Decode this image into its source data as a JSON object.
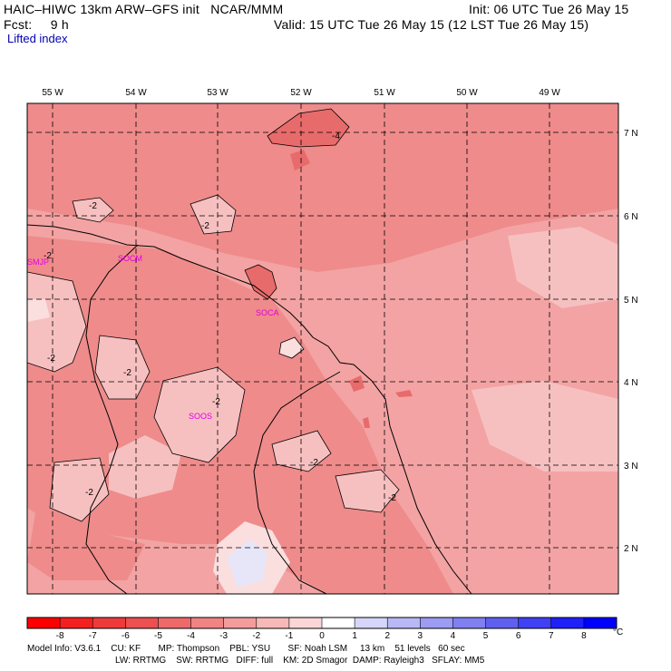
{
  "header": {
    "model_line": "HAIC–HIWC 13km ARW–GFS init   NCAR/MMM",
    "fcst_line": "Fcst:     9 h",
    "init_line": "Init: 06 UTC Tue 26 May 15",
    "valid_line": "Valid: 15 UTC Tue 26 May 15 (12 LST Tue 26 May 15)",
    "field": "Lifted index"
  },
  "map": {
    "lon_labels": [
      "55 W",
      "54 W",
      "53 W",
      "52 W",
      "51 W",
      "50 W",
      "49 W"
    ],
    "lat_labels": [
      "7 N",
      "6 N",
      "5 N",
      "4 N",
      "3 N",
      "2 N"
    ],
    "stations": [
      "SMJP",
      "SOCM",
      "SOCA",
      "SOOS"
    ],
    "contour_labels": [
      "-2",
      "-2",
      "-2",
      "-2",
      "-2",
      "-2",
      "-2",
      "-2",
      "-2",
      "-4"
    ],
    "colors": {
      "background": "#f3a3a3",
      "darker": "#ef8b8b",
      "darkest": "#e86b6b",
      "lighter": "#f7c0c0",
      "lightest": "#fbdede",
      "blue_light": "#e6e6f8",
      "station": "#e000e0"
    }
  },
  "colorbar": {
    "ticks": [
      "-8",
      "-7",
      "-6",
      "-5",
      "-4",
      "-3",
      "-2",
      "-1",
      "0",
      "1",
      "2",
      "3",
      "4",
      "5",
      "6",
      "7",
      "8"
    ],
    "unit": "°C",
    "colors": [
      "#ff0000",
      "#f42020",
      "#ef3a3a",
      "#ec5050",
      "#ee6a6a",
      "#f08484",
      "#f39c9c",
      "#f7b8b8",
      "#fbd6d6",
      "#ffffff",
      "#d6d6fb",
      "#b8b8f7",
      "#9c9cf3",
      "#8080f0",
      "#6060f0",
      "#4040f4",
      "#2020f8",
      "#0000ff"
    ]
  },
  "model_info": {
    "line1": "Model Info: V3.6.1    CU: KF       MP: Thompson    PBL: YSU       SF: Noah LSM     13 km    51 levels   60 sec",
    "line2": "LW: RRTMG    SW: RRTMG   DIFF: full    KM: 2D Smagor  DAMP: Rayleigh3   SFLAY: MM5"
  }
}
